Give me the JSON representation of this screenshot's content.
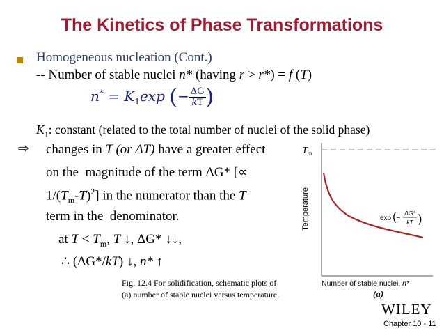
{
  "title": "The Kinetics of Phase Transformations",
  "bullet": "Homogeneous nucleation (Cont.)",
  "line1": [
    "-- Number of stable nuclei ",
    "n*",
    " (having ",
    "r",
    " > ",
    "r*",
    ") = ",
    "f",
    " (",
    "T",
    ")"
  ],
  "equation": {
    "lhs": [
      "n",
      "*",
      " = ",
      "K",
      "1",
      "exp"
    ],
    "paren_open": "(",
    "minus": "−",
    "numerator": "ΔG",
    "denominator": [
      "k",
      "T"
    ],
    "paren_close": ")"
  },
  "constant": [
    "K",
    "1",
    ": constant (related to the total number of nuclei of the solid phase)"
  ],
  "effect": {
    "arrow": "⇨",
    "lines": [
      [
        "changes in ",
        "T (or ΔT)",
        " have a greater effect"
      ],
      [
        "on the  magnitude of the term ΔG* [∝"
      ],
      [
        "1/(",
        "T",
        "m",
        "-",
        "T",
        ")",
        "2",
        "] in the numerator than the ",
        "T"
      ],
      [
        "term in the  denominator."
      ]
    ]
  },
  "condition": [
    "at ",
    "T",
    " < ",
    "T",
    "m",
    ", ",
    "T",
    " ↓, ΔG* ↓↓,"
  ],
  "consequence": [
    "∴ (ΔG*/",
    "kT",
    ") ↓, ",
    "n*",
    " ↑"
  ],
  "figure": {
    "tm": [
      "T",
      "m"
    ],
    "y_label": "Temperature",
    "curve_label": [
      "exp",
      "(",
      "−",
      "ΔG*",
      "kT",
      ")"
    ],
    "x_label": [
      "Number of stable nuclei, ",
      "n*"
    ],
    "panel": "(a)",
    "caption": [
      "Fig. 12.4 For solidification, schematic plots of",
      "(a) number of stable nuclei versus temperature."
    ]
  },
  "publisher": "WILEY",
  "footer": "Chapter 10 - 11"
}
